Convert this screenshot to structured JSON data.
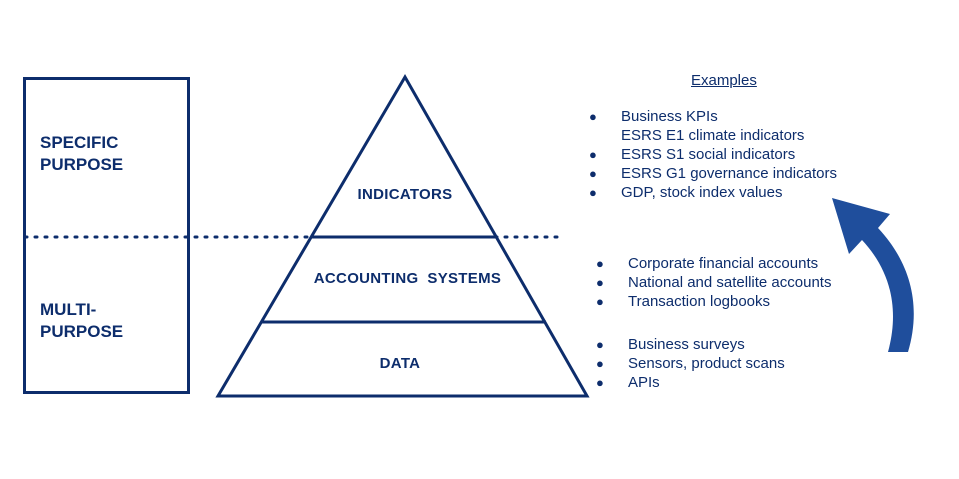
{
  "purpose": {
    "specific_label": "SPECIFIC\nPURPOSE",
    "multi_label": "MULTI-\nPURPOSE"
  },
  "pyramid": {
    "top_label": "INDICATORS",
    "middle_label": "ACCOUNTING  SYSTEMS",
    "bottom_label": "DATA"
  },
  "examples": {
    "title": "Examples",
    "indicators": [
      {
        "text": "Business KPIs",
        "bullet": true
      },
      {
        "text": "ESRS E1 climate indicators",
        "bullet": false
      },
      {
        "text": "ESRS S1 social indicators",
        "bullet": true
      },
      {
        "text": "ESRS G1 governance indicators",
        "bullet": true
      },
      {
        "text": "GDP, stock index values",
        "bullet": true
      }
    ],
    "accounting": [
      {
        "text": "Corporate financial accounts",
        "bullet": true
      },
      {
        "text": "National and satellite accounts",
        "bullet": true
      },
      {
        "text": "Transaction logbooks",
        "bullet": true
      }
    ],
    "data": [
      {
        "text": "Business surveys",
        "bullet": true
      },
      {
        "text": "Sensors, product scans",
        "bullet": true
      },
      {
        "text": "APIs",
        "bullet": true
      }
    ]
  },
  "colors": {
    "primary": "#0d2d6c",
    "arrow": "#1f4e9c"
  }
}
